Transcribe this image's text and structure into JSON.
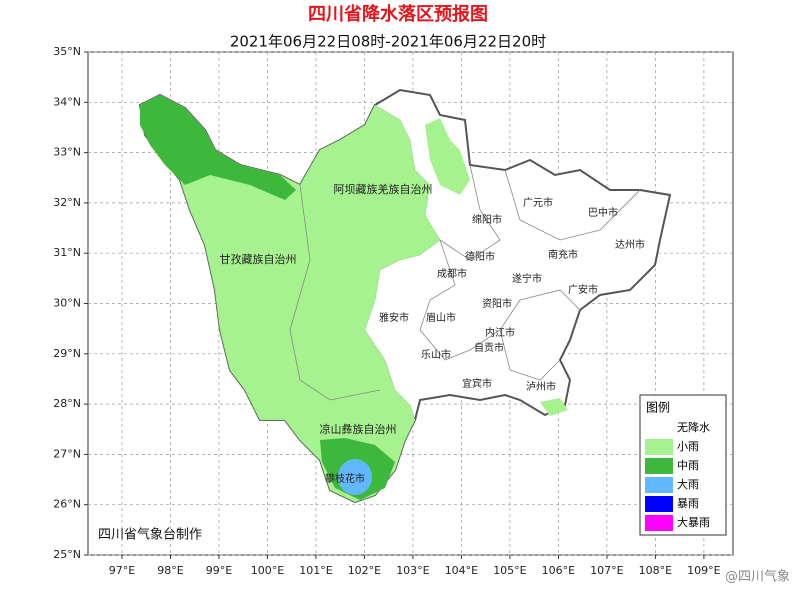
{
  "title": "四川省降水落区预报图",
  "subtitle": "2021年06月22日08时-2021年06月22日20时",
  "map": {
    "lon_range": [
      96.3,
      109.6
    ],
    "lat_range": [
      25,
      35
    ],
    "lat_ticks": [
      {
        "value": 35,
        "label": "35°N"
      },
      {
        "value": 34,
        "label": "34°N"
      },
      {
        "value": 33,
        "label": "33°N"
      },
      {
        "value": 32,
        "label": "32°N"
      },
      {
        "value": 31,
        "label": "31°N"
      },
      {
        "value": 30,
        "label": "30°N"
      },
      {
        "value": 29,
        "label": "29°N"
      },
      {
        "value": 28,
        "label": "28°N"
      },
      {
        "value": 27,
        "label": "27°N"
      },
      {
        "value": 26,
        "label": "26°N"
      },
      {
        "value": 25,
        "label": "25°N"
      }
    ],
    "lon_ticks": [
      {
        "value": 97,
        "label": "97°E"
      },
      {
        "value": 98,
        "label": "98°E"
      },
      {
        "value": 99,
        "label": "99°E"
      },
      {
        "value": 100,
        "label": "100°E"
      },
      {
        "value": 101,
        "label": "101°E"
      },
      {
        "value": 102,
        "label": "102°E"
      },
      {
        "value": 103,
        "label": "103°E"
      },
      {
        "value": 104,
        "label": "104°E"
      },
      {
        "value": 105,
        "label": "105°E"
      },
      {
        "value": 106,
        "label": "106°E"
      },
      {
        "value": 107,
        "label": "107°E"
      },
      {
        "value": 108,
        "label": "108°E"
      },
      {
        "value": 109,
        "label": "109°E"
      }
    ]
  },
  "places": [
    "广元市",
    "巴中市",
    "达州市",
    "绵阳市",
    "德阳市",
    "南充市",
    "成都市",
    "遂宁市",
    "广安市",
    "资阳市",
    "雅安市",
    "眉山市",
    "内江市",
    "自贡市",
    "乐山市",
    "宜宾市",
    "泸州市",
    "阿坝藏族羌族自治州",
    "甘孜藏族自治州",
    "凉山彝族自治州",
    "攀枝花市"
  ],
  "legend": {
    "title": "图例",
    "items": [
      {
        "label": "无降水",
        "color": "#ffffff"
      },
      {
        "label": "小雨",
        "color": "#a6f28f"
      },
      {
        "label": "中雨",
        "color": "#3db83d"
      },
      {
        "label": "大雨",
        "color": "#62b8ff"
      },
      {
        "label": "暴雨",
        "color": "#0000fe"
      },
      {
        "label": "大暴雨",
        "color": "#fe00fe"
      }
    ]
  },
  "credit": "四川省气象台制作",
  "watermark": "@四川气象"
}
